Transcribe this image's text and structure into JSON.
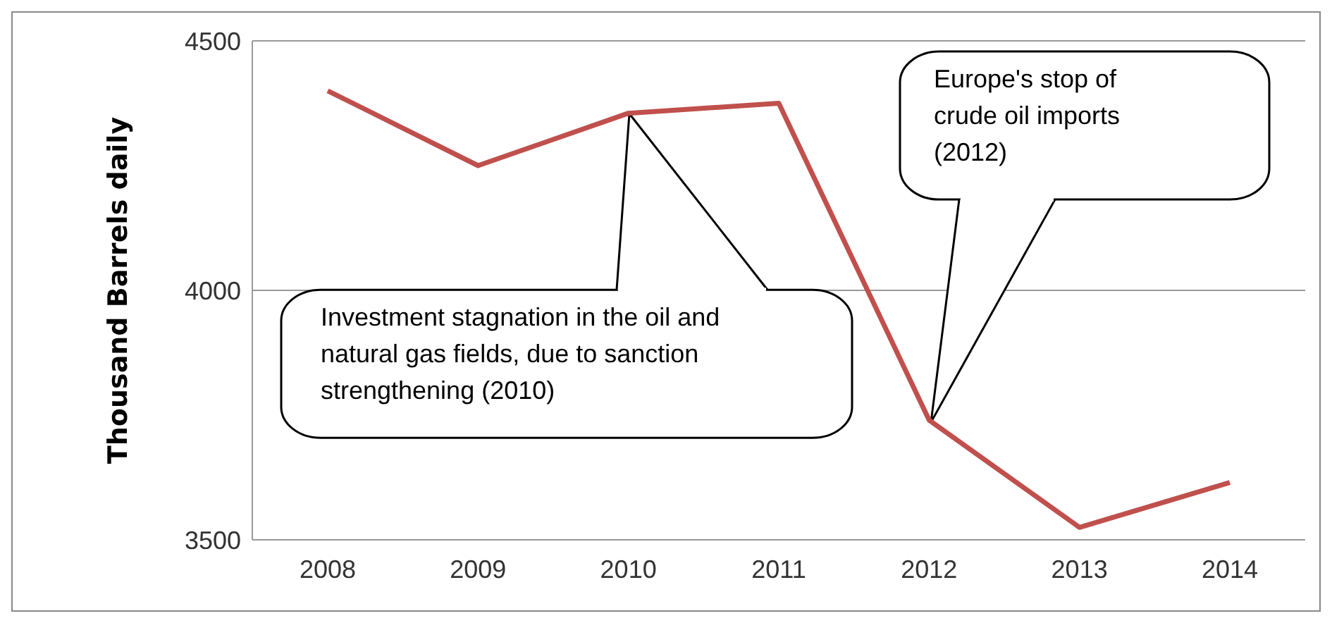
{
  "chart_data": {
    "type": "line",
    "ylabel": "Thousand Barrels daily",
    "categories": [
      "2008",
      "2009",
      "2010",
      "2011",
      "2012",
      "2013",
      "2014"
    ],
    "series": [
      {
        "color": "#c0504d",
        "values": [
          4400,
          4250,
          4355,
          4375,
          3740,
          3525,
          3615
        ]
      }
    ],
    "ylim": [
      3500,
      4500
    ],
    "yticks": [
      3500,
      4000,
      4500
    ],
    "grid": "y",
    "marker": "none",
    "line_style": "solid",
    "annotations": [
      "Investment stagnation in the oil and natural gas fields, due to sanction strengthening (2010)",
      "Europe's stop of crude oil imports (2012)"
    ]
  }
}
